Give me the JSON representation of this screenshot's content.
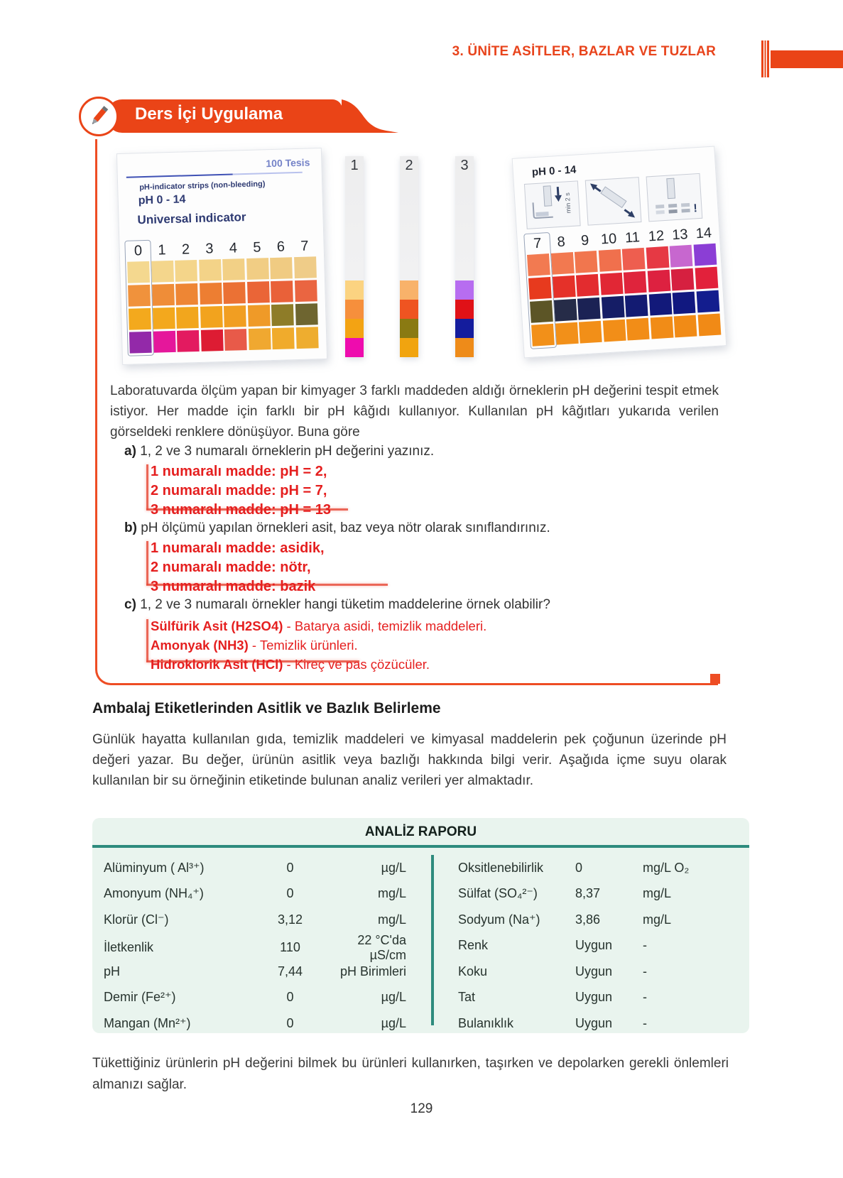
{
  "page": {
    "unit_header": "3. ÜNİTE ASİTLER, BAZLAR VE TUZLAR",
    "accent_color": "#ea4417",
    "teal_color": "#2e8b7d",
    "answer_red": "#e51f1f"
  },
  "banner": {
    "title": "Ders İçi Uygulama"
  },
  "figure": {
    "left_box": {
      "tests_label": "100 Tesis",
      "subtitle": "pH-indicator strips (non-bleeding)",
      "range_label": "pH 0 - 14",
      "indicator_label": "Universal indicator",
      "columns": [
        "0",
        "1",
        "2",
        "3",
        "4",
        "5",
        "6",
        "7"
      ],
      "swatch_rows": [
        [
          "#f4d88f",
          "#f4d68c",
          "#f4d58a",
          "#f3d388",
          "#f2d086",
          "#f1cd84",
          "#f0cb82",
          "#efcc88"
        ],
        [
          "#f0923c",
          "#ef8d38",
          "#ee8634",
          "#ed7e32",
          "#eb7134",
          "#ea6537",
          "#e96139",
          "#ea6541"
        ],
        [
          "#f3a91d",
          "#f3a81d",
          "#f2a61d",
          "#f2a31e",
          "#f19e22",
          "#ef9a28",
          "#8e7c28",
          "#6e6530"
        ],
        [
          "#9329a9",
          "#e5179b",
          "#e31a60",
          "#dd1c33",
          "#e85a49",
          "#f0a830",
          "#f0ab2c",
          "#eead2f"
        ]
      ]
    },
    "strips": [
      {
        "label": "1",
        "blocks": [
          "#fbd381",
          "#f68f3c",
          "#f3a313",
          "#ee0cae"
        ]
      },
      {
        "label": "2",
        "blocks": [
          "#f8b26a",
          "#ef5421",
          "#8a7a12",
          "#f1a40f"
        ]
      },
      {
        "label": "3",
        "blocks": [
          "#b76df0",
          "#e01117",
          "#141c9d",
          "#ee8b19"
        ]
      }
    ],
    "right_box": {
      "range_label": "pH 0 - 14",
      "dip_time_label": "min 2 s",
      "columns": [
        "7",
        "8",
        "9",
        "10",
        "11",
        "12",
        "13",
        "14"
      ],
      "swatch_rows": [
        [
          "#f27a51",
          "#f27950",
          "#f1764e",
          "#f0704d",
          "#ee5e4f",
          "#e63944",
          "#c767cf",
          "#8b3ed5"
        ],
        [
          "#e73a1e",
          "#e53129",
          "#e32c2f",
          "#e12735",
          "#df243c",
          "#dd2140",
          "#d62040",
          "#e2213b"
        ],
        [
          "#5c5526",
          "#262c48",
          "#1b2254",
          "#151d66",
          "#131b72",
          "#12197a",
          "#111880",
          "#131d8e"
        ],
        [
          "#f29019",
          "#f29019",
          "#f28f18",
          "#f28e18",
          "#f28d17",
          "#f18c17",
          "#f18b16",
          "#f18a16"
        ]
      ]
    }
  },
  "activity": {
    "intro": "Laboratuvarda ölçüm yapan bir kimyager 3 farklı maddeden aldığı örneklerin pH değerini tespit etmek istiyor. Her madde için farklı bir pH kâğıdı kullanıyor. Kullanılan pH kâğıtları yukarıda verilen görseldeki renklere dönüşüyor. Buna göre",
    "items": [
      {
        "letter": "a)",
        "question": "1, 2 ve 3 numaralı örneklerin pH değerini yazınız.",
        "answers": [
          "1 numaralı madde: pH = 2,",
          "2 numaralı madde: pH = 7,",
          "3 numaralı madde: pH = 13"
        ]
      },
      {
        "letter": "b)",
        "question": "pH ölçümü yapılan örnekleri asit, baz veya nötr olarak sınıflandırınız.",
        "answers": [
          "1 numaralı madde: asidik,",
          "2 numaralı madde: nötr,",
          "3 numaralı madde: bazik"
        ]
      },
      {
        "letter": "c)",
        "question": "1, 2 ve 3 numaralı örnekler hangi tüketim maddelerine örnek olabilir?",
        "answers_pairs": [
          {
            "name": "Sülfürik Asit (H2SO4)",
            "desc": " - Batarya asidi, temizlik maddeleri."
          },
          {
            "name": "Amonyak (NH3)",
            "desc": " - Temizlik ürünleri."
          },
          {
            "name": "Hidroklorik Asit (HCl)",
            "desc": " - Kireç ve pas çözücüler."
          }
        ]
      }
    ]
  },
  "section": {
    "heading": "Ambalaj Etiketlerinden Asitlik ve Bazlık Belirleme",
    "paragraph": "Günlük hayatta kullanılan gıda, temizlik maddeleri ve kimyasal maddelerin pek çoğunun üzerinde pH değeri yazar. Bu değer, ürünün asitlik veya bazlığı hakkında bilgi verir. Aşağıda içme suyu olarak kullanılan bir su örneğinin etiketinde bulunan analiz verileri yer almaktadır."
  },
  "report": {
    "title": "ANALİZ RAPORU",
    "left_rows": [
      {
        "label": "Alüminyum ( Al³⁺)",
        "value": "0",
        "unit": "µg/L"
      },
      {
        "label": "Amonyum (NH₄⁺)",
        "value": "0",
        "unit": "mg/L"
      },
      {
        "label": "Klorür (Cl⁻)",
        "value": "3,12",
        "unit": "mg/L"
      },
      {
        "label": "İletkenlik",
        "value": "110",
        "unit": "22 °C'da µS/cm"
      },
      {
        "label": "pH",
        "value": "7,44",
        "unit": "pH Birimleri"
      },
      {
        "label": "Demir (Fe²⁺)",
        "value": "0",
        "unit": "µg/L"
      },
      {
        "label": "Mangan (Mn²⁺)",
        "value": "0",
        "unit": "µg/L"
      }
    ],
    "right_rows": [
      {
        "label": "Oksitlenebilirlik",
        "value": "0",
        "unit": "mg/L O₂"
      },
      {
        "label": "Sülfat (SO₄²⁻)",
        "value": "8,37",
        "unit": "mg/L"
      },
      {
        "label": "Sodyum (Na⁺)",
        "value": "3,86",
        "unit": "mg/L"
      },
      {
        "label": "Renk",
        "value": "Uygun",
        "unit": "-"
      },
      {
        "label": "Koku",
        "value": "Uygun",
        "unit": "-"
      },
      {
        "label": "Tat",
        "value": "Uygun",
        "unit": "-"
      },
      {
        "label": "Bulanıklık",
        "value": "Uygun",
        "unit": "-"
      }
    ]
  },
  "footer": {
    "note": "Tükettiğiniz ürünlerin pH değerini bilmek bu ürünleri kullanırken, taşırken ve depolarken gerekli önlemleri almanızı sağlar.",
    "page_number": "129"
  }
}
